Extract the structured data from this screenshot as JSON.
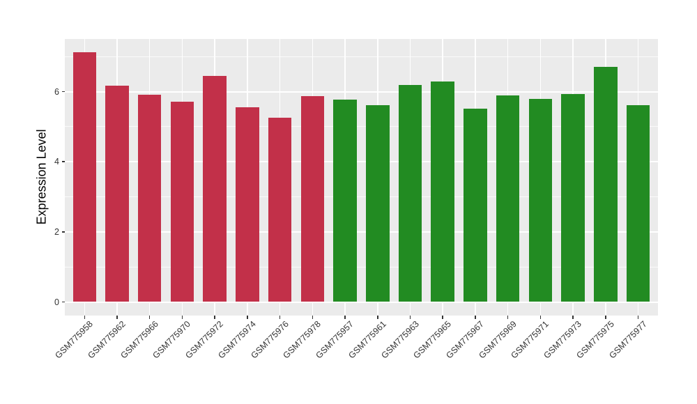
{
  "chart_data": {
    "type": "bar",
    "title": "",
    "xlabel": "",
    "ylabel": "Expression Level",
    "ylim": [
      0,
      7.5
    ],
    "yticks": [
      0,
      2,
      4,
      6
    ],
    "yticks_minor": [
      1,
      3,
      5,
      7
    ],
    "grid": "on",
    "legend": "none",
    "categories": [
      "GSM775958",
      "GSM775962",
      "GSM775966",
      "GSM775970",
      "GSM775972",
      "GSM775974",
      "GSM775976",
      "GSM775978",
      "GSM775957",
      "GSM775961",
      "GSM775963",
      "GSM775965",
      "GSM775967",
      "GSM775969",
      "GSM775971",
      "GSM775973",
      "GSM775975",
      "GSM775977"
    ],
    "values": [
      7.12,
      6.17,
      5.91,
      5.72,
      6.45,
      5.55,
      5.26,
      5.87,
      5.78,
      5.62,
      6.18,
      6.29,
      5.52,
      5.89,
      5.8,
      5.93,
      6.71,
      5.62
    ],
    "bar_groups": [
      "red",
      "red",
      "red",
      "red",
      "red",
      "red",
      "red",
      "red",
      "green",
      "green",
      "green",
      "green",
      "green",
      "green",
      "green",
      "green",
      "green",
      "green"
    ],
    "group_colors": {
      "red": "#C23049",
      "green": "#228B22"
    }
  },
  "style": {
    "panel_bg": "#EBEBEB",
    "grid_color": "#FFFFFF",
    "tick_color": "#333333",
    "axis_text_color": "#333333",
    "axis_title_color": "#000000",
    "background": "#FFFFFF"
  }
}
